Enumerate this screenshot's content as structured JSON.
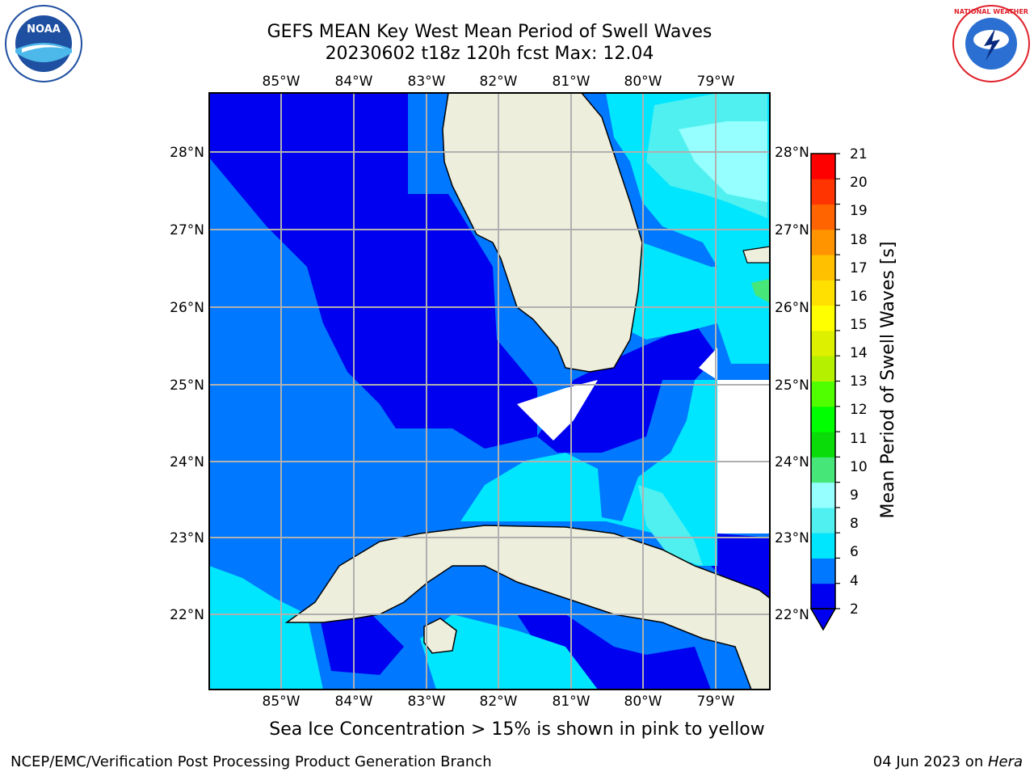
{
  "header": {
    "title_line1": "GEFS MEAN Key West Mean Period of Swell Waves",
    "title_line2": "20230602 t18z 120h fcst   Max: 12.04"
  },
  "logos": {
    "left": {
      "name": "NOAA",
      "ring_text": "NATIONAL OCEANIC AND ATMOSPHERIC ADMINISTRATION · U.S. DEPARTMENT OF COMMERCE",
      "colors": {
        "blue": "#1e4fa0",
        "light": "#4db8ea"
      }
    },
    "right": {
      "name": "NATIONAL WEATHER SERVICE",
      "colors": {
        "red": "#e0202a",
        "blue": "#2a6fd1"
      }
    }
  },
  "map": {
    "lon_labels": [
      "85°W",
      "84°W",
      "83°W",
      "82°W",
      "81°W",
      "80°W",
      "79°W"
    ],
    "lat_labels": [
      "28°N",
      "27°N",
      "26°N",
      "25°N",
      "24°N",
      "23°N",
      "22°N"
    ],
    "land_color": "#eeeedd",
    "grid_color": "#b0b0b0"
  },
  "colorbar": {
    "label": "Mean Period of Swell Waves [s]",
    "ticks": [
      "21",
      "20",
      "19",
      "18",
      "17",
      "16",
      "15",
      "14",
      "13",
      "12",
      "11",
      "10",
      "9",
      "8",
      "6",
      "4",
      "2"
    ],
    "colors_bottom_to_top": [
      "#0000f0",
      "#0078ff",
      "#00e6ff",
      "#50f0f0",
      "#96ffff",
      "#46e678",
      "#0adc0a",
      "#00ff00",
      "#50ff00",
      "#b4f000",
      "#dcf000",
      "#ffff00",
      "#ffe000",
      "#ffc000",
      "#ff9400",
      "#ff6400",
      "#ff3400",
      "#ff0000"
    ]
  },
  "note": "Sea Ice Concentration > 15% is shown in pink to yellow",
  "footer": {
    "left": "NCEP/EMC/Verification Post Processing Product Generation Branch",
    "date": "04 Jun 2023 on ",
    "host": "Hera"
  }
}
